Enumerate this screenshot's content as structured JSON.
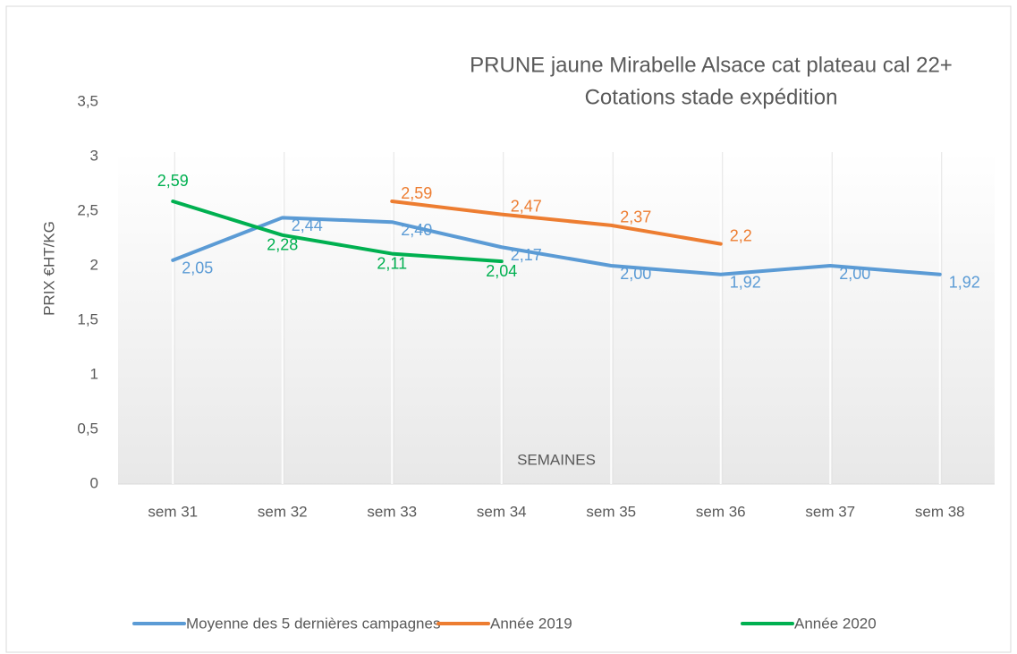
{
  "chart_data": {
    "type": "line",
    "title": "PRUNE jaune Mirabelle Alsace cat plateau cal 22+",
    "subtitle": "Cotations stade expédition",
    "y_label": "PRIX €HT/KG",
    "x_label": "SEMAINES",
    "categories": [
      "sem 31",
      "sem 32",
      "sem 33",
      "sem 34",
      "sem 35",
      "sem 36",
      "sem 37",
      "sem 38"
    ],
    "series": [
      {
        "name": "Moyenne des 5 dernières campagnes",
        "color": "#5b9bd5",
        "values": [
          2.05,
          2.44,
          2.4,
          2.17,
          2.0,
          1.92,
          2.0,
          1.92
        ],
        "value_labels": [
          "2,05",
          "2,44",
          "2,40",
          "2,17",
          "2,00",
          "1,92",
          "2,00",
          "1,92"
        ]
      },
      {
        "name": "Année 2019",
        "color": "#ed7d31",
        "values": [
          null,
          null,
          2.59,
          2.47,
          2.37,
          2.2,
          null,
          null
        ],
        "value_labels": [
          null,
          null,
          "2,59",
          "2,47",
          "2,37",
          "2,2",
          null,
          null
        ]
      },
      {
        "name": "Année 2020",
        "color": "#00b050",
        "values": [
          2.59,
          2.28,
          2.11,
          2.04,
          null,
          null,
          null,
          null
        ],
        "value_labels": [
          "2,59",
          "2,28",
          "2,11",
          "2,04",
          null,
          null,
          null,
          null
        ]
      }
    ],
    "ylim": [
      0,
      3.5
    ],
    "yticks": [
      0,
      {
        "value": 0.5,
        "label": "0,5"
      },
      1,
      {
        "value": 1.5,
        "label": "1,5"
      },
      2,
      {
        "value": 2.5,
        "label": "2,5"
      },
      3,
      {
        "value": 3.5,
        "label": "3,5"
      }
    ],
    "legend": "bottom"
  }
}
